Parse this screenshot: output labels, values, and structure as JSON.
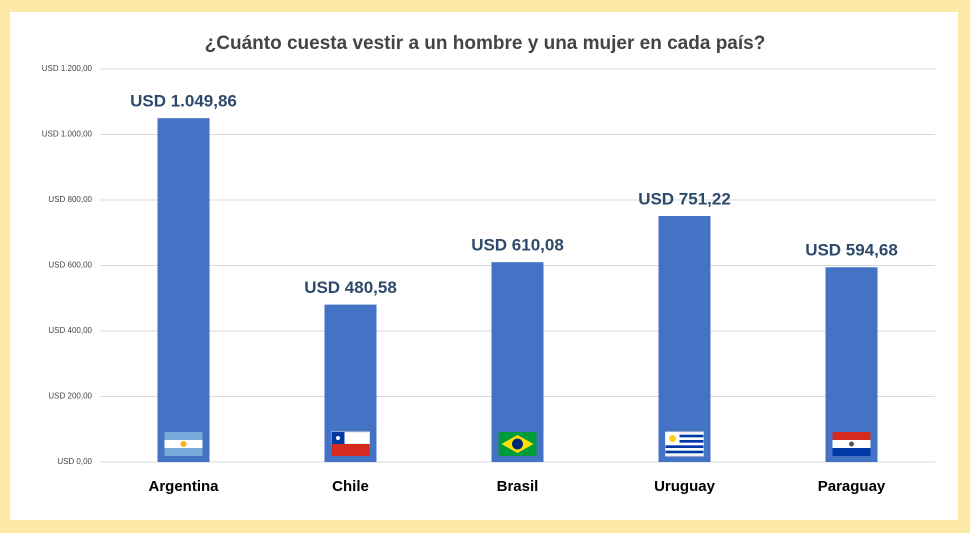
{
  "chart_data": {
    "type": "bar",
    "title": "¿Cuánto cuesta vestir a un hombre y una mujer en cada país?",
    "categories": [
      "Argentina",
      "Chile",
      "Brasil",
      "Uruguay",
      "Paraguay"
    ],
    "values": [
      1049.86,
      480.58,
      610.08,
      751.22,
      594.68
    ],
    "value_labels": [
      "USD 1.049,86",
      "USD 480,58",
      "USD 610,08",
      "USD 751,22",
      "USD 594,68"
    ],
    "color": "#4472c4",
    "ylim": [
      0,
      1200
    ],
    "yticks": [
      {
        "value": 0,
        "label": "USD 0,00"
      },
      {
        "value": 200,
        "label": "USD 200,00"
      },
      {
        "value": 400,
        "label": "USD 400,00"
      },
      {
        "value": 600,
        "label": "USD 600,00"
      },
      {
        "value": 800,
        "label": "USD 800,00"
      },
      {
        "value": 1000,
        "label": "USD 1.000,00"
      },
      {
        "value": 1200,
        "label": "USD 1.200,00"
      }
    ],
    "grid": true
  }
}
